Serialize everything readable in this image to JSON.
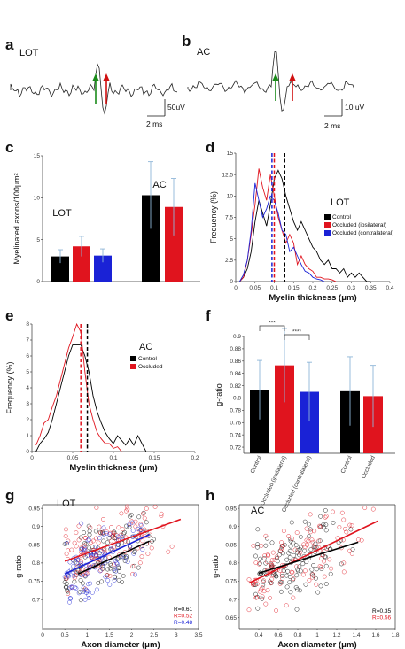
{
  "panels": {
    "a": {
      "letter": "a",
      "title": "LOT",
      "scale_v": "50uV",
      "scale_t": "2 ms"
    },
    "b": {
      "letter": "b",
      "title": "AC",
      "scale_v": "10 uV",
      "scale_t": "2 ms"
    },
    "c": {
      "letter": "c"
    },
    "d": {
      "letter": "d"
    },
    "e": {
      "letter": "e"
    },
    "f": {
      "letter": "f"
    },
    "g": {
      "letter": "g"
    },
    "h": {
      "letter": "h"
    }
  },
  "colors": {
    "control": "#000000",
    "occluded": "#e0141e",
    "contralateral": "#1a22d6",
    "errbar": "#8fb6d8",
    "arrow_green": "#1a8a1a",
    "arrow_red": "#d01010"
  },
  "chart_data": [
    {
      "id": "c",
      "type": "bar",
      "ylabel": "Myelinated axons/100μm²",
      "ylim": [
        0,
        15
      ],
      "yticks": [
        "0",
        "5",
        "10",
        "15"
      ],
      "groups": [
        {
          "label": "LOT",
          "bars": [
            {
              "series": "Control",
              "value": 3.0,
              "err": 0.8
            },
            {
              "series": "Occluded (ipsilateral)",
              "value": 4.2,
              "err": 1.2
            },
            {
              "series": "Occluded (contralateral)",
              "value": 3.1,
              "err": 0.8
            }
          ]
        },
        {
          "label": "AC",
          "bars": [
            {
              "series": "Control",
              "value": 10.3,
              "err": 4.0
            },
            {
              "series": "Occluded",
              "value": 8.9,
              "err": 3.4
            }
          ]
        }
      ]
    },
    {
      "id": "d",
      "type": "line",
      "title": "LOT",
      "xlabel": "Myelin thickness (μm)",
      "ylabel": "Frequency (%)",
      "xlim": [
        0,
        0.4
      ],
      "ylim": [
        0,
        15
      ],
      "xticks": [
        "0",
        "0.05",
        "0.1",
        "0.15",
        "0.2",
        "0.25",
        "0.3",
        "0.35",
        "0.4"
      ],
      "yticks": [
        "0",
        "2.5",
        "5",
        "7.5",
        "10",
        "12.5",
        "15"
      ],
      "legend": [
        "Control",
        "Occluded (ipsilateral)",
        "Occluded (contralateral)"
      ],
      "series": [
        {
          "name": "Control",
          "x": [
            0.01,
            0.02,
            0.03,
            0.04,
            0.05,
            0.06,
            0.07,
            0.08,
            0.09,
            0.1,
            0.11,
            0.12,
            0.13,
            0.14,
            0.15,
            0.16,
            0.17,
            0.18,
            0.19,
            0.2,
            0.21,
            0.22,
            0.23,
            0.24,
            0.25,
            0.26,
            0.27,
            0.28,
            0.29,
            0.3,
            0.31,
            0.32,
            0.33,
            0.34,
            0.35
          ],
          "y": [
            0,
            0.5,
            1.5,
            3.5,
            7,
            9.5,
            8,
            6.5,
            9,
            12,
            13,
            12,
            10,
            8.5,
            7,
            6,
            7,
            6,
            5,
            4,
            3.5,
            2.5,
            2,
            2.5,
            1.5,
            1.5,
            1,
            1.5,
            0.5,
            1,
            0.5,
            1,
            0.5,
            0,
            0
          ]
        },
        {
          "name": "Occluded (ipsilateral)",
          "x": [
            0.01,
            0.02,
            0.03,
            0.04,
            0.05,
            0.06,
            0.07,
            0.08,
            0.09,
            0.1,
            0.11,
            0.12,
            0.13,
            0.14,
            0.15,
            0.16,
            0.17,
            0.18,
            0.19,
            0.2,
            0.21,
            0.22,
            0.23,
            0.24,
            0.25,
            0.26
          ],
          "y": [
            0,
            0.5,
            2.5,
            5.5,
            9,
            13.2,
            11,
            9.5,
            12.5,
            10,
            7.5,
            6,
            4.5,
            5.5,
            4.5,
            2,
            3,
            2,
            1.5,
            1.2,
            0.5,
            0.5,
            0.3,
            0.3,
            0.2,
            0
          ]
        },
        {
          "name": "Occluded (contralateral)",
          "x": [
            0.01,
            0.02,
            0.03,
            0.04,
            0.05,
            0.06,
            0.07,
            0.08,
            0.09,
            0.1,
            0.11,
            0.12,
            0.13,
            0.14,
            0.15,
            0.16,
            0.17,
            0.18,
            0.19,
            0.2,
            0.21,
            0.22,
            0.23
          ],
          "y": [
            0,
            0.8,
            2.5,
            6,
            11.5,
            9.5,
            7.5,
            8.5,
            10,
            9.5,
            8,
            6,
            5.5,
            3.5,
            4,
            3,
            2,
            1.2,
            1,
            0.5,
            0.3,
            0.2,
            0
          ]
        }
      ],
      "means": [
        {
          "series": "Control",
          "x": 0.127
        },
        {
          "series": "Occluded (ipsilateral)",
          "x": 0.1
        },
        {
          "series": "Occluded (contralateral)",
          "x": 0.094
        }
      ]
    },
    {
      "id": "e",
      "type": "line",
      "title": "AC",
      "xlabel": "Myelin thickness (μm)",
      "ylabel": "Frequency (%)",
      "xlim": [
        0,
        0.2
      ],
      "ylim": [
        0,
        8
      ],
      "xticks": [
        "0",
        "0.05",
        "0.1",
        "0.15",
        "0.2"
      ],
      "yticks": [
        "0",
        "1",
        "2",
        "3",
        "4",
        "5",
        "6",
        "7",
        "8"
      ],
      "legend": [
        "Control",
        "Occluded"
      ],
      "series": [
        {
          "name": "Control",
          "x": [
            0.005,
            0.01,
            0.015,
            0.02,
            0.025,
            0.03,
            0.035,
            0.04,
            0.045,
            0.05,
            0.055,
            0.06,
            0.065,
            0.07,
            0.075,
            0.08,
            0.085,
            0.09,
            0.095,
            0.1,
            0.105,
            0.11,
            0.115,
            0.12,
            0.125,
            0.13,
            0.135,
            0.14
          ],
          "y": [
            0,
            0.5,
            0.8,
            1.2,
            2,
            3,
            4,
            5,
            6,
            6.7,
            6.7,
            6.7,
            6,
            5,
            3.5,
            2.5,
            1.8,
            1.2,
            0.8,
            0.5,
            1,
            0.7,
            0.4,
            0.8,
            0.4,
            1,
            0.5,
            0
          ]
        },
        {
          "name": "Occluded",
          "x": [
            0.005,
            0.01,
            0.015,
            0.02,
            0.025,
            0.03,
            0.035,
            0.04,
            0.045,
            0.05,
            0.055,
            0.06,
            0.065,
            0.07,
            0.075,
            0.08,
            0.085,
            0.09,
            0.095,
            0.1,
            0.105,
            0.11
          ],
          "y": [
            0.4,
            1,
            1.8,
            2,
            2.8,
            3.5,
            4.5,
            5.5,
            6.5,
            7.2,
            8,
            7.5,
            5,
            3,
            2,
            1.2,
            0.8,
            0.5,
            0.5,
            0.2,
            0.3,
            0
          ]
        }
      ],
      "means": [
        {
          "series": "Control",
          "x": 0.068
        },
        {
          "series": "Occluded",
          "x": 0.06
        }
      ]
    },
    {
      "id": "f",
      "type": "bar",
      "ylabel": "g-ratio",
      "ylim": [
        0.71,
        0.9
      ],
      "yticks": [
        "0.72",
        "0.74",
        "0.76",
        "0.78",
        "0.8",
        "0.82",
        "0.84",
        "0.86",
        "0.88",
        "0.9"
      ],
      "bars": [
        {
          "label": "Control",
          "series": "Control",
          "value": 0.813,
          "err": 0.048
        },
        {
          "label": "Occluded (ipsilateral)",
          "series": "Occluded",
          "value": 0.853,
          "err": 0.06
        },
        {
          "label": "Occluded (contralateral)",
          "series": "Contralateral",
          "value": 0.81,
          "err": 0.048
        },
        {
          "label": "Control",
          "series": "Control",
          "value": 0.811,
          "err": 0.056
        },
        {
          "label": "Occluded",
          "series": "Occluded",
          "value": 0.803,
          "err": 0.05
        }
      ],
      "significance": [
        {
          "from": 0,
          "to": 1,
          "label": "***"
        },
        {
          "from": 1,
          "to": 2,
          "label": "****"
        }
      ]
    },
    {
      "id": "g",
      "type": "scatter",
      "title": "LOT",
      "xlabel": "Axon diameter (μm)",
      "ylabel": "g-ratio",
      "xlim": [
        0,
        3.5
      ],
      "ylim": [
        0.62,
        0.96
      ],
      "xticks": [
        "0",
        "0.5",
        "1",
        "1.5",
        "2",
        "2.5",
        "3",
        "3.5"
      ],
      "yticks": [
        "0.7",
        "0.75",
        "0.8",
        "0.85",
        "0.9",
        "0.95"
      ],
      "fits": [
        {
          "series": "Occluded (ipsilateral)",
          "x": [
            0.5,
            3.1
          ],
          "y": [
            0.805,
            0.92
          ]
        },
        {
          "series": "Control",
          "x": [
            0.8,
            2.4
          ],
          "y": [
            0.77,
            0.86
          ]
        },
        {
          "series": "Occluded (contralateral)",
          "x": [
            0.5,
            2.4
          ],
          "y": [
            0.77,
            0.878
          ]
        }
      ],
      "r_values": [
        {
          "series": "Control",
          "label": "R=0.61"
        },
        {
          "series": "Occluded (ipsilateral)",
          "label": "R=0.52"
        },
        {
          "series": "Occluded (contralateral)",
          "label": "R=0.48"
        }
      ],
      "points_note": "approx. 350 points per figure; generated deterministically in script"
    },
    {
      "id": "h",
      "type": "scatter",
      "title": "AC",
      "xlabel": "Axon diameter (μm)",
      "ylabel": "g-ratio",
      "xlim": [
        0.2,
        1.8
      ],
      "ylim": [
        0.62,
        0.96
      ],
      "xticks": [
        "0.4",
        "0.6",
        "0.8",
        "1",
        "1.2",
        "1.4",
        "1.6",
        "1.8"
      ],
      "yticks": [
        "0.65",
        "0.7",
        "0.75",
        "0.8",
        "0.85",
        "0.9",
        "0.95"
      ],
      "fits": [
        {
          "series": "Occluded",
          "x": [
            0.3,
            1.62
          ],
          "y": [
            0.745,
            0.915
          ]
        },
        {
          "series": "Control",
          "x": [
            0.4,
            1.42
          ],
          "y": [
            0.772,
            0.857
          ]
        }
      ],
      "r_values": [
        {
          "series": "Control",
          "label": "R=0.35"
        },
        {
          "series": "Occluded",
          "label": "R=0.56"
        }
      ]
    }
  ]
}
